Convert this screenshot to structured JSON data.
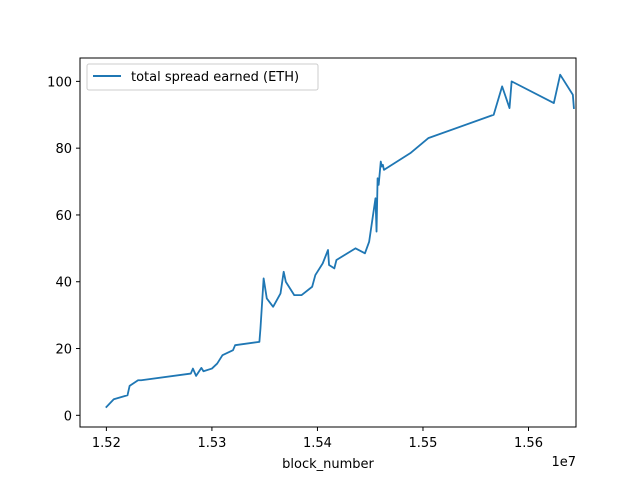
{
  "chart_data": {
    "type": "line",
    "xlabel": "block_number",
    "ylabel": "",
    "x_offset_label": "1e7",
    "xlim": [
      15175000,
      15645000
    ],
    "ylim": [
      -3.5,
      107
    ],
    "x_ticks": [
      15200000,
      15300000,
      15400000,
      15500000,
      15600000
    ],
    "x_tick_labels": [
      "1.52",
      "1.53",
      "1.54",
      "1.55",
      "1.56"
    ],
    "y_ticks": [
      0,
      20,
      40,
      60,
      80,
      100
    ],
    "y_tick_labels": [
      "0",
      "20",
      "40",
      "60",
      "80",
      "100"
    ],
    "grid": false,
    "legend_position": "upper-left",
    "series": [
      {
        "name": "total spread earned (ETH)",
        "color": "#1f77b4",
        "x": [
          15200000,
          15207000,
          15220000,
          15222000,
          15230000,
          15233000,
          15280000,
          15282000,
          15285000,
          15290000,
          15292000,
          15300000,
          15305000,
          15310000,
          15320000,
          15322000,
          15345000,
          15346000,
          15349000,
          15352000,
          15358000,
          15365000,
          15368000,
          15370000,
          15378000,
          15385000,
          15395000,
          15398000,
          15405000,
          15410000,
          15411000,
          15416000,
          15418000,
          15436000,
          15445000,
          15449000,
          15455000,
          15456000,
          15457000,
          15458000,
          15460000,
          15461000,
          15462000,
          15463000,
          15488000,
          15505000,
          15567000,
          15575000,
          15582000,
          15584000,
          15624000,
          15630000,
          15642000,
          15643000
        ],
        "y": [
          2.5,
          4.8,
          6.0,
          8.8,
          10.5,
          10.5,
          12.5,
          14.0,
          11.8,
          14.2,
          13.2,
          14.0,
          15.5,
          18.0,
          19.5,
          21.0,
          22.0,
          26.0,
          41.0,
          35.0,
          32.5,
          36.5,
          43.0,
          40.0,
          36.0,
          36.0,
          38.5,
          42.0,
          45.5,
          49.5,
          45.0,
          44.0,
          46.5,
          50.0,
          48.5,
          52.0,
          65.0,
          55.0,
          71.0,
          69.0,
          76.0,
          74.5,
          75.0,
          73.5,
          78.5,
          83.0,
          90.0,
          98.5,
          92.0,
          100.0,
          93.5,
          102.0,
          96.0,
          92.0
        ]
      }
    ]
  }
}
